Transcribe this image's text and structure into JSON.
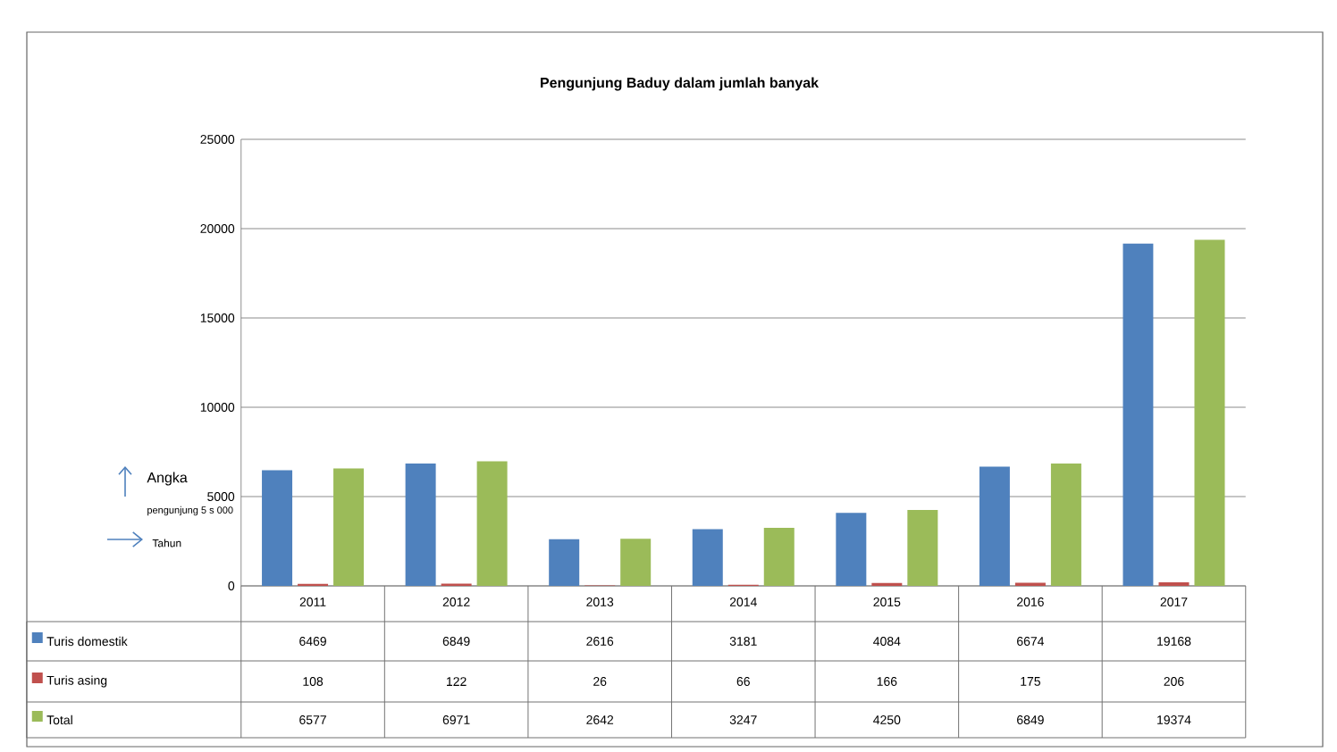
{
  "chart_data": {
    "type": "bar",
    "title": "Pengunjung Baduy dalam jumlah banyak",
    "categories": [
      "2011",
      "2012",
      "2013",
      "2014",
      "2015",
      "2016",
      "2017"
    ],
    "series": [
      {
        "name": "Turis domestik",
        "color": "#4f81bd",
        "values": [
          6469,
          6849,
          2616,
          3181,
          4084,
          6674,
          19168
        ]
      },
      {
        "name": "Turis asing",
        "color": "#c0504d",
        "values": [
          108,
          122,
          26,
          66,
          166,
          175,
          206
        ]
      },
      {
        "name": "Total",
        "color": "#9bbb59",
        "values": [
          6577,
          6971,
          2642,
          3247,
          4250,
          6849,
          19374
        ]
      }
    ],
    "ylim": [
      0,
      25000
    ],
    "yticks": [
      0,
      5000,
      10000,
      15000,
      20000,
      25000
    ],
    "grid": "y",
    "legend": "bottom left",
    "data_labels": true,
    "annotations": [
      "Angka",
      "pengunjung 5 s 000",
      "Tahun"
    ]
  }
}
